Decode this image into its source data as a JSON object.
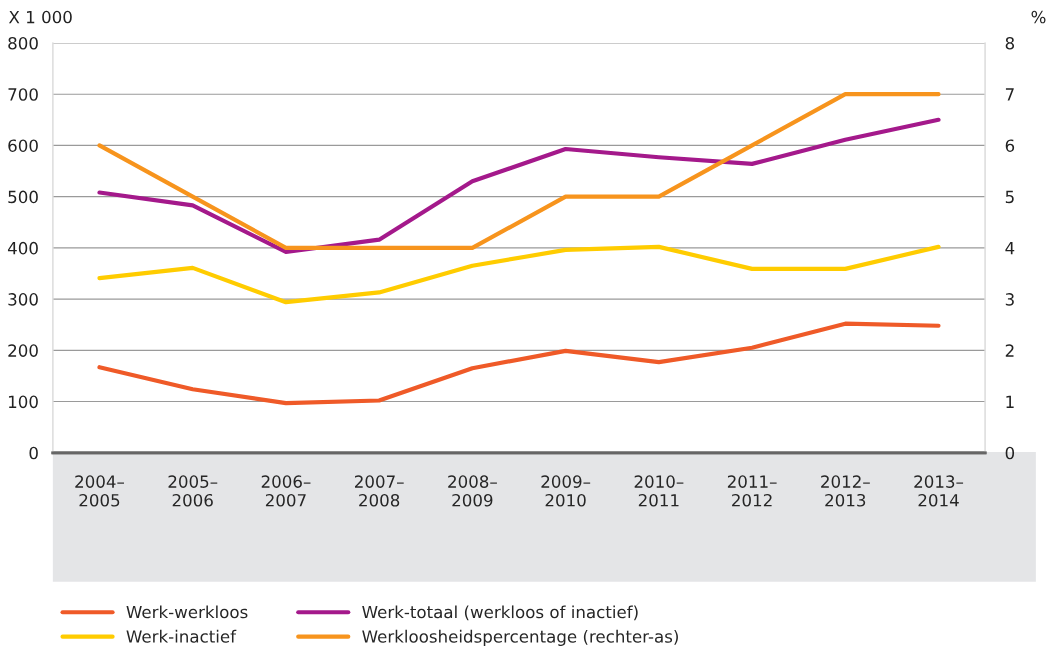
{
  "chart_data": {
    "type": "line",
    "categories": [
      "2004–\n2005",
      "2005–\n2006",
      "2006–\n2007",
      "2007–\n2008",
      "2008–\n2009",
      "2009–\n2010",
      "2010–\n2011",
      "2011–\n2012",
      "2012–\n2013",
      "2013–\n2014"
    ],
    "series": [
      {
        "name": "Werk-werkloos",
        "color": "#ef5a28",
        "values": [
          167,
          124,
          97,
          102,
          165,
          199,
          177,
          205,
          252,
          248
        ]
      },
      {
        "name": "Werk-inactief",
        "color": "#ffcc00",
        "values": [
          341,
          361,
          294,
          313,
          365,
          396,
          402,
          359,
          359,
          402
        ]
      },
      {
        "name": "Werk-totaal (werkloos of inactief)",
        "color": "#a4198b",
        "values": [
          508,
          483,
          392,
          416,
          530,
          593,
          577,
          564,
          611,
          650
        ]
      },
      {
        "name": "Werkloosheidspercentage (rechter-as)",
        "color": "#f7941d",
        "axis": "y2",
        "values": [
          6,
          5,
          4,
          4,
          4,
          5,
          5,
          6,
          7,
          7
        ]
      }
    ],
    "ylabel": "X 1 000",
    "y2label": "%",
    "ylim": [
      0,
      800
    ],
    "yticks": [
      0,
      100,
      200,
      300,
      400,
      500,
      600,
      700,
      800
    ],
    "y2lim": [
      0,
      8
    ],
    "y2ticks": [
      0,
      1,
      2,
      3,
      4,
      5,
      6,
      7,
      8
    ],
    "grid": "y",
    "legend": "bottom",
    "marker": "none",
    "line_style": "solid"
  }
}
